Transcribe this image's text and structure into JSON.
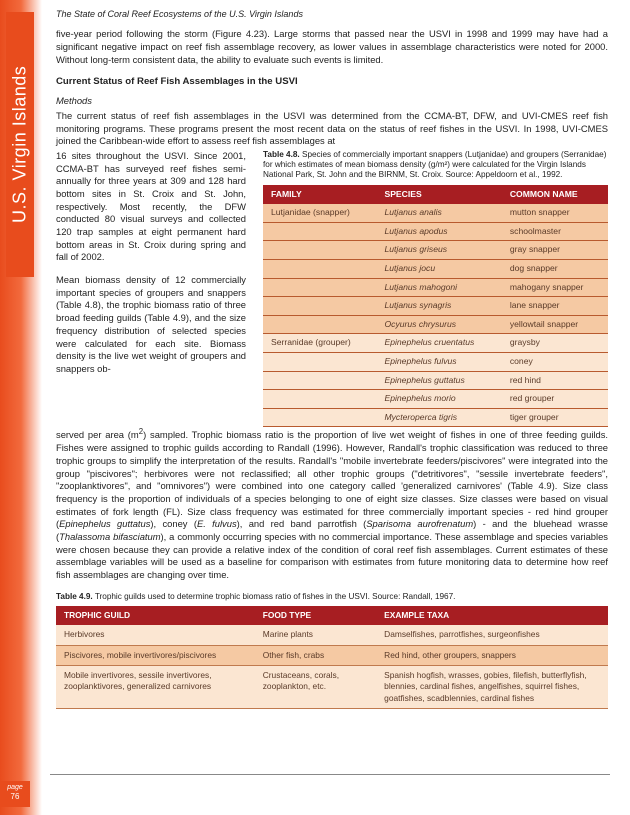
{
  "header": {
    "title": "The State of Coral Reef Ecosystems of the U.S. Virgin Islands"
  },
  "side_tab": {
    "label": "U.S. Virgin Islands"
  },
  "page": {
    "label": "page",
    "number": "76"
  },
  "p1": "five-year period following the storm (Figure 4.23).  Large storms that passed near the USVI in 1998 and 1999 may have had a significant negative impact on reef fish assemblage recovery, as lower values in assemblage characteristics were noted for 2000.  Without long-term consistent data, the ability to evaluate such events is limited.",
  "section": "Current Status of Reef Fish Assemblages in the USVI",
  "methods_label": "Methods",
  "p2": "The current status of reef fish assemblages in the USVI was determined from the CCMA-BT, DFW, and UVI-CMES reef fish monitoring programs.  These programs present the most recent data on the status of reef fishes in the USVI. In 1998, UVI-CMES joined the Caribbean-wide effort to assess reef fish assemblages at",
  "left1": "16 sites throughout the USVI.  Since 2001, CCMA-BT has surveyed reef fishes semi-annually for three years at 309 and 128 hard bottom sites in St. Croix and St. John, respectively.  Most recently, the DFW conducted 80 visual surveys and collected 120 trap samples at eight permanent hard bottom areas in St. Croix during spring and fall of 2002.",
  "left2": "Mean biomass density of 12 commercially important species of groupers and snappers (Table 4.8), the trophic biomass ratio of three broad feeding guilds (Table 4.9), and the size frequency distribution of selected species were calculated for each site.  Biomass density is the live wet weight of groupers and snappers ob-",
  "t48": {
    "caption_bold": "Table 4.8.",
    "caption": "  Species of commercially important snappers (Lutjanidae) and groupers (Serranidae) for which estimates of mean biomass density (g/m²) were calculated for the Virgin Islands National Park, St. John and the BIRNM, St. Croix.  Source: Appeldoorn et al., 1992.",
    "headers": [
      "FAMILY",
      "SPECIES",
      "COMMON NAME"
    ],
    "rows": [
      {
        "family": "Lutjanidae (snapper)",
        "species": "Lutjanus analis",
        "common": "mutton snapper",
        "shade": "dark"
      },
      {
        "family": "",
        "species": "Lutjanus apodus",
        "common": "schoolmaster",
        "shade": "dark"
      },
      {
        "family": "",
        "species": "Lutjanus griseus",
        "common": "gray snapper",
        "shade": "dark"
      },
      {
        "family": "",
        "species": "Lutjanus jocu",
        "common": "dog snapper",
        "shade": "dark"
      },
      {
        "family": "",
        "species": "Lutjanus mahogoni",
        "common": "mahogany snapper",
        "shade": "dark"
      },
      {
        "family": "",
        "species": "Lutjanus synagris",
        "common": "lane snapper",
        "shade": "dark"
      },
      {
        "family": "",
        "species": "Ocyurus chrysurus",
        "common": "yellowtail snapper",
        "shade": "dark"
      },
      {
        "family": "Serranidae (grouper)",
        "species": "Epinephelus cruentatus",
        "common": "graysby",
        "shade": "light"
      },
      {
        "family": "",
        "species": "Epinephelus fulvus",
        "common": "coney",
        "shade": "light"
      },
      {
        "family": "",
        "species": "Epinephelus guttatus",
        "common": "red hind",
        "shade": "light"
      },
      {
        "family": "",
        "species": "Epinephelus morio",
        "common": "red grouper",
        "shade": "light"
      },
      {
        "family": "",
        "species": "Mycteroperca tigris",
        "common": "tiger grouper",
        "shade": "light"
      }
    ]
  },
  "p3a": "served per area (m",
  "p3b": ") sampled.  Trophic biomass ratio is the proportion of live wet weight of fishes in one of three feeding guilds.  Fishes were assigned to trophic guilds according to Randall (1996).  However, Randall's trophic classification was reduced to three trophic groups to simplify the interpretation of the results.  Randall's \"mobile invertebrate feeders/piscivores\" were integrated into the group \"piscivores\"; herbivores were not reclassified; all other trophic groups (\"detritivores\", \"sessile invertebrate feeders\", \"zooplanktivores\", and \"omnivores\") were combined into one category called 'generalized carnivores' (Table 4.9).  Size class frequency is the proportion of individuals of a species belonging to one of eight size classes.  Size classes were based on visual estimates of fork length (FL).  Size class frequency was estimated for three commercially important species - red hind grouper (",
  "sp1": "Epinephelus guttatus",
  "p3c": "), coney (",
  "sp2": "E.  fulvus",
  "p3d": "), and red band parrotfish (",
  "sp3": "Sparisoma aurofrenatum",
  "p3e": ") - and the bluehead wrasse (",
  "sp4": "Thalassoma bifasciatum",
  "p3f": "), a commonly occurring species with no commercial importance.  These assemblage and species variables were chosen because they can provide a relative index of the condition of coral reef fish assemblages.  Current estimates of these assemblage variables will be used as a baseline for comparison with estimates from future monitoring data to determine how reef fish assemblages are changing over time.",
  "t49": {
    "caption_bold": "Table 4.9.",
    "caption": "  Trophic guilds used to determine trophic biomass ratio of fishes in the USVI.  Source:  Randall, 1967.",
    "headers": [
      "TROPHIC GUILD",
      "FOOD TYPE",
      "EXAMPLE TAXA"
    ],
    "rows": [
      {
        "guild": "Herbivores",
        "food": "Marine plants",
        "taxa": "Damselfishes, parrotfishes, surgeonfishes",
        "shade": "light"
      },
      {
        "guild": "Piscivores, mobile invertivores/piscivores",
        "food": "Other fish, crabs",
        "taxa": "Red hind, other groupers, snappers",
        "shade": "dark"
      },
      {
        "guild": "Mobile invertivores, sessile invertivores, zooplanktivores, generalized carnivores",
        "food": "Crustaceans, corals, zooplankton, etc.",
        "taxa": "Spanish hogfish, wrasses, gobies, filefish, butterflyfish, blennies, cardinal fishes, angelfishes, squirrel fishes, goatfishes, scadblennies, cardinal fishes",
        "shade": "light"
      }
    ]
  }
}
